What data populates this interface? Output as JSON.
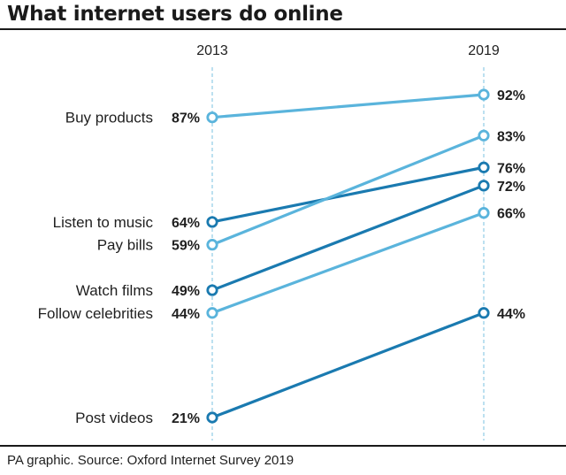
{
  "title": "What internet users do online",
  "source": "PA graphic. Source: Oxford Internet Survey 2019",
  "chart_data": {
    "type": "line",
    "subtype": "slope",
    "x": [
      "2013",
      "2019"
    ],
    "y_unit": "%",
    "ylim": [
      21,
      92
    ],
    "grid": false,
    "legend": "none",
    "series": [
      {
        "name": "Buy products",
        "values": [
          87,
          92
        ],
        "color": "#5ab4dc"
      },
      {
        "name": "Listen to music",
        "values": [
          64,
          76
        ],
        "color": "#1a7ab0"
      },
      {
        "name": "Pay bills",
        "values": [
          59,
          83
        ],
        "color": "#5ab4dc"
      },
      {
        "name": "Watch films",
        "values": [
          49,
          72
        ],
        "color": "#1a7ab0"
      },
      {
        "name": "Follow celebrities",
        "values": [
          44,
          66
        ],
        "color": "#5ab4dc"
      },
      {
        "name": "Post videos",
        "values": [
          21,
          44
        ],
        "color": "#1a7ab0"
      }
    ],
    "value_labels": {
      "Buy products": [
        "87%",
        "92%"
      ],
      "Listen to music": [
        "64%",
        "76%"
      ],
      "Pay bills": [
        "59%",
        "83%"
      ],
      "Watch films": [
        "49%",
        "72%"
      ],
      "Follow celebrities": [
        "44%",
        "66%"
      ],
      "Post videos": [
        "21%",
        "44%"
      ]
    }
  }
}
